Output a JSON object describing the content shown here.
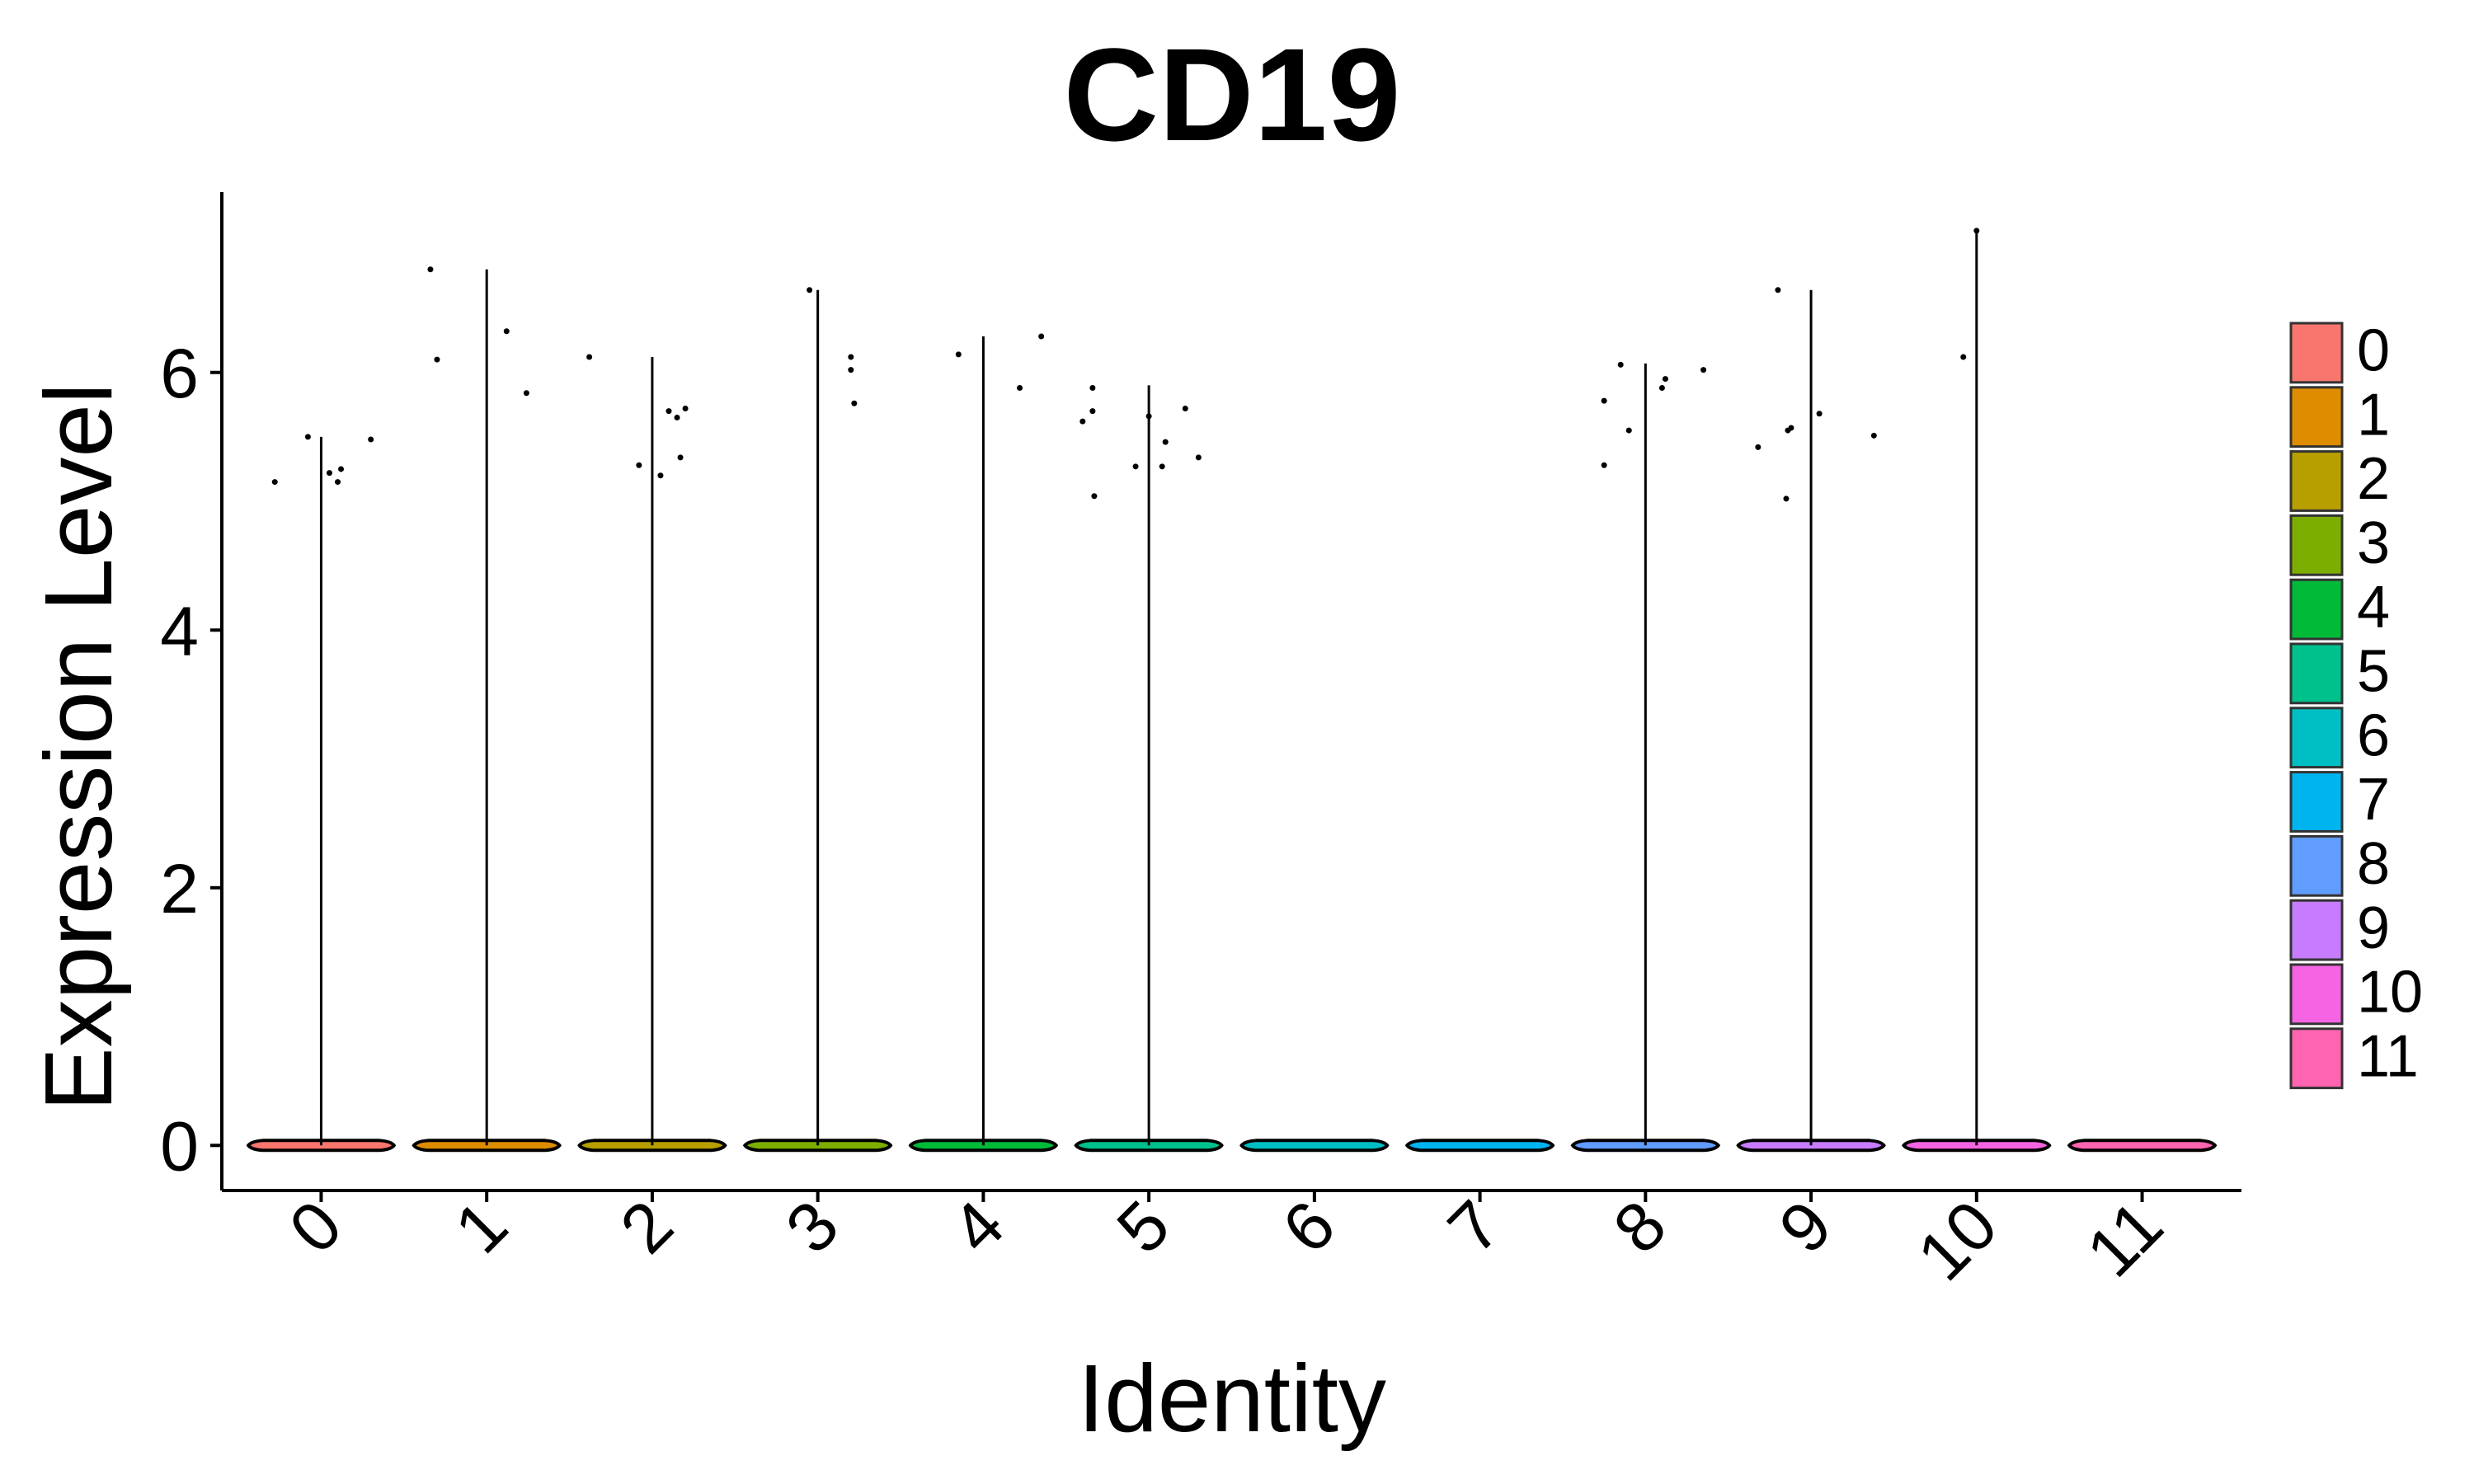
{
  "chart_data": {
    "type": "violin",
    "title": "CD19",
    "xlabel": "Identity",
    "ylabel": "Expression Level",
    "categories": [
      "0",
      "1",
      "2",
      "3",
      "4",
      "5",
      "6",
      "7",
      "8",
      "9",
      "10",
      "11"
    ],
    "colors": [
      "#F8766D",
      "#DE8C00",
      "#B79F00",
      "#7CAE00",
      "#00BA38",
      "#00C08B",
      "#00BFC4",
      "#00B4F0",
      "#619CFF",
      "#C77CFF",
      "#F564E3",
      "#FF64B0"
    ],
    "ylim": [
      -0.35,
      7.4
    ],
    "yticks": [
      0,
      2,
      4,
      6
    ],
    "xtick_rotation": 45,
    "legend_position": "right",
    "grid": false,
    "series": [
      {
        "identity": "0",
        "max": 5.5,
        "points": [
          [
            -0.28,
            5.15
          ],
          [
            -0.08,
            5.5
          ],
          [
            0.05,
            5.22
          ],
          [
            0.12,
            5.25
          ],
          [
            0.1,
            5.15
          ],
          [
            0.3,
            5.48
          ]
        ]
      },
      {
        "identity": "1",
        "max": 6.8,
        "points": [
          [
            -0.34,
            6.8
          ],
          [
            -0.3,
            6.1
          ],
          [
            0.12,
            6.32
          ],
          [
            0.24,
            5.84
          ]
        ]
      },
      {
        "identity": "2",
        "max": 6.12,
        "points": [
          [
            -0.38,
            6.12
          ],
          [
            -0.08,
            5.28
          ],
          [
            0.05,
            5.2
          ],
          [
            0.1,
            5.7
          ],
          [
            0.15,
            5.65
          ],
          [
            0.17,
            5.34
          ],
          [
            0.2,
            5.72
          ]
        ]
      },
      {
        "identity": "3",
        "max": 6.64,
        "points": [
          [
            -0.05,
            6.64
          ],
          [
            0.2,
            6.12
          ],
          [
            0.2,
            6.02
          ],
          [
            0.22,
            5.76
          ]
        ]
      },
      {
        "identity": "4",
        "max": 6.28,
        "points": [
          [
            -0.15,
            6.14
          ],
          [
            0.22,
            5.88
          ],
          [
            0.35,
            6.28
          ]
        ]
      },
      {
        "identity": "5",
        "max": 5.9,
        "points": [
          [
            -0.4,
            5.62
          ],
          [
            -0.34,
            5.7
          ],
          [
            -0.34,
            5.88
          ],
          [
            -0.33,
            5.04
          ],
          [
            -0.08,
            5.27
          ],
          [
            0.0,
            5.66
          ],
          [
            0.08,
            5.27
          ],
          [
            0.1,
            5.46
          ],
          [
            0.22,
            5.72
          ],
          [
            0.3,
            5.34
          ]
        ]
      },
      {
        "identity": "6",
        "max": 0,
        "points": []
      },
      {
        "identity": "7",
        "max": 0,
        "points": []
      },
      {
        "identity": "8",
        "max": 6.07,
        "points": [
          [
            -0.25,
            5.78
          ],
          [
            -0.25,
            5.28
          ],
          [
            -0.15,
            6.06
          ],
          [
            -0.1,
            5.55
          ],
          [
            0.1,
            5.88
          ],
          [
            0.12,
            5.95
          ],
          [
            0.35,
            6.02
          ]
        ]
      },
      {
        "identity": "9",
        "max": 6.64,
        "points": [
          [
            -0.32,
            5.42
          ],
          [
            -0.2,
            6.64
          ],
          [
            -0.15,
            5.02
          ],
          [
            -0.14,
            5.55
          ],
          [
            -0.12,
            5.57
          ],
          [
            0.05,
            5.68
          ],
          [
            0.38,
            5.51
          ]
        ]
      },
      {
        "identity": "10",
        "max": 7.1,
        "points": [
          [
            -0.08,
            6.12
          ],
          [
            0.0,
            7.1
          ]
        ]
      },
      {
        "identity": "11",
        "max": 0,
        "points": []
      }
    ]
  }
}
